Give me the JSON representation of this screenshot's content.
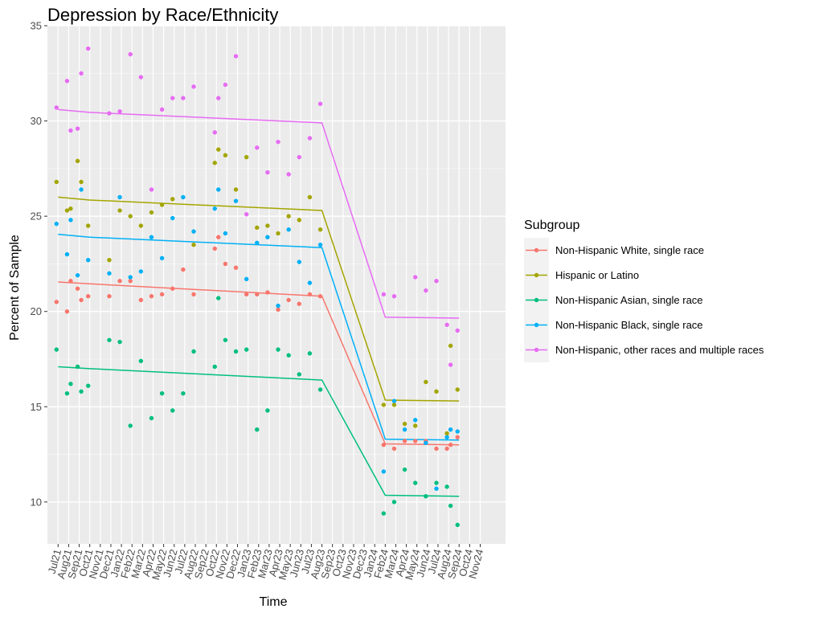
{
  "chart_data": {
    "type": "scatter",
    "title": "Depression by Race/Ethnicity",
    "xlabel": "Time",
    "ylabel": "Percent of Sample",
    "ylim": [
      7.8,
      35
    ],
    "y_ticks": [
      10,
      15,
      20,
      25,
      30,
      35
    ],
    "grid": true,
    "legend_title": "Subgroup",
    "legend_position": "right",
    "x_categories": [
      "Jul21",
      "Aug21",
      "Sep21",
      "Oct21",
      "Nov21",
      "Dec21",
      "Jan22",
      "Feb22",
      "Mar22",
      "Apr22",
      "May22",
      "Jun22",
      "Jul22",
      "Aug22",
      "Sep22",
      "Oct22",
      "Nov22",
      "Dec22",
      "Jan23",
      "Feb23",
      "Mar23",
      "Apr23",
      "May23",
      "Jun23",
      "Jul23",
      "Aug23",
      "Sep23",
      "Oct23",
      "Nov23",
      "Dec23",
      "Jan24",
      "Feb24",
      "Mar24",
      "Apr24",
      "May24",
      "Jun24",
      "Jul24",
      "Aug24",
      "Sep24",
      "Oct24",
      "Nov24"
    ],
    "series": [
      {
        "name": "Non-Hispanic White, single race",
        "color": "#F8766D",
        "points": [
          [
            "Jul21",
            20.5
          ],
          [
            "Aug21",
            20.0
          ],
          [
            "Aug21",
            21.6
          ],
          [
            "Sep21",
            21.2
          ],
          [
            "Sep21",
            20.6
          ],
          [
            "Oct21",
            20.8
          ],
          [
            "Dec21",
            20.8
          ],
          [
            "Jan22",
            21.6
          ],
          [
            "Feb22",
            21.6
          ],
          [
            "Mar22",
            20.6
          ],
          [
            "Apr22",
            20.8
          ],
          [
            "May22",
            20.9
          ],
          [
            "Jun22",
            21.2
          ],
          [
            "Jul22",
            22.2
          ],
          [
            "Aug22",
            20.9
          ],
          [
            "Oct22",
            23.3
          ],
          [
            "Oct22",
            23.9
          ],
          [
            "Nov22",
            22.5
          ],
          [
            "Dec22",
            22.3
          ],
          [
            "Jan23",
            20.9
          ],
          [
            "Feb23",
            20.9
          ],
          [
            "Mar23",
            21.0
          ],
          [
            "Apr23",
            20.1
          ],
          [
            "May23",
            20.6
          ],
          [
            "Jun23",
            20.4
          ],
          [
            "Jul23",
            20.9
          ],
          [
            "Aug23",
            20.8
          ],
          [
            "Feb24",
            13.0
          ],
          [
            "Mar24",
            12.8
          ],
          [
            "Apr24",
            13.2
          ],
          [
            "May24",
            13.2
          ],
          [
            "Jun24",
            13.2
          ],
          [
            "Jul24",
            12.8
          ],
          [
            "Aug24",
            12.8
          ],
          [
            "Aug24",
            13.0
          ],
          [
            "Sep24",
            13.4
          ]
        ],
        "trend": [
          [
            "Jul21",
            21.55
          ],
          [
            "Oct21",
            21.45
          ],
          [
            "Aug23",
            20.8
          ],
          [
            "Feb24",
            13.05
          ],
          [
            "Sep24",
            13.0
          ]
        ]
      },
      {
        "name": "Hispanic or Latino",
        "color": "#A3A500",
        "points": [
          [
            "Jul21",
            26.8
          ],
          [
            "Aug21",
            25.3
          ],
          [
            "Aug21",
            25.4
          ],
          [
            "Sep21",
            27.9
          ],
          [
            "Sep21",
            26.8
          ],
          [
            "Oct21",
            24.5
          ],
          [
            "Dec21",
            22.7
          ],
          [
            "Jan22",
            25.3
          ],
          [
            "Feb22",
            25.0
          ],
          [
            "Mar22",
            24.5
          ],
          [
            "Apr22",
            25.2
          ],
          [
            "May22",
            25.6
          ],
          [
            "Jun22",
            25.9
          ],
          [
            "Aug22",
            23.5
          ],
          [
            "Oct22",
            27.8
          ],
          [
            "Oct22",
            28.5
          ],
          [
            "Nov22",
            28.2
          ],
          [
            "Dec22",
            26.4
          ],
          [
            "Jan23",
            28.1
          ],
          [
            "Feb23",
            24.4
          ],
          [
            "Mar23",
            24.5
          ],
          [
            "Apr23",
            24.1
          ],
          [
            "May23",
            25.0
          ],
          [
            "Jun23",
            24.8
          ],
          [
            "Jul23",
            26.0
          ],
          [
            "Aug23",
            24.3
          ],
          [
            "Feb24",
            15.1
          ],
          [
            "Mar24",
            15.1
          ],
          [
            "Apr24",
            14.1
          ],
          [
            "May24",
            14.0
          ],
          [
            "Jun24",
            16.3
          ],
          [
            "Jul24",
            15.8
          ],
          [
            "Aug24",
            13.6
          ],
          [
            "Aug24",
            18.2
          ],
          [
            "Sep24",
            15.9
          ]
        ],
        "trend": [
          [
            "Jul21",
            26.0
          ],
          [
            "Oct21",
            25.85
          ],
          [
            "Aug23",
            25.3
          ],
          [
            "Feb24",
            15.35
          ],
          [
            "Sep24",
            15.3
          ]
        ]
      },
      {
        "name": "Non-Hispanic Asian, single race",
        "color": "#00BF7D",
        "points": [
          [
            "Jul21",
            18.0
          ],
          [
            "Aug21",
            15.7
          ],
          [
            "Aug21",
            16.2
          ],
          [
            "Sep21",
            17.1
          ],
          [
            "Sep21",
            15.8
          ],
          [
            "Oct21",
            16.1
          ],
          [
            "Dec21",
            18.5
          ],
          [
            "Jan22",
            18.4
          ],
          [
            "Feb22",
            14.0
          ],
          [
            "Mar22",
            17.4
          ],
          [
            "Apr22",
            14.4
          ],
          [
            "May22",
            15.7
          ],
          [
            "Jun22",
            14.8
          ],
          [
            "Jul22",
            15.7
          ],
          [
            "Aug22",
            17.9
          ],
          [
            "Oct22",
            17.1
          ],
          [
            "Oct22",
            20.7
          ],
          [
            "Nov22",
            18.5
          ],
          [
            "Dec22",
            17.9
          ],
          [
            "Jan23",
            18.0
          ],
          [
            "Feb23",
            13.8
          ],
          [
            "Mar23",
            14.8
          ],
          [
            "Apr23",
            18.0
          ],
          [
            "May23",
            17.7
          ],
          [
            "Jun23",
            16.7
          ],
          [
            "Jul23",
            17.8
          ],
          [
            "Aug23",
            15.9
          ],
          [
            "Feb24",
            9.4
          ],
          [
            "Mar24",
            10.0
          ],
          [
            "Apr24",
            11.7
          ],
          [
            "May24",
            11.0
          ],
          [
            "Jun24",
            10.3
          ],
          [
            "Jul24",
            11.0
          ],
          [
            "Aug24",
            10.8
          ],
          [
            "Aug24",
            9.8
          ],
          [
            "Sep24",
            8.8
          ]
        ],
        "trend": [
          [
            "Jul21",
            17.1
          ],
          [
            "Oct21",
            17.0
          ],
          [
            "Aug23",
            16.4
          ],
          [
            "Feb24",
            10.35
          ],
          [
            "Sep24",
            10.3
          ]
        ]
      },
      {
        "name": "Non-Hispanic Black, single race",
        "color": "#00B0F6",
        "points": [
          [
            "Jul21",
            24.6
          ],
          [
            "Aug21",
            23.0
          ],
          [
            "Aug21",
            24.8
          ],
          [
            "Sep21",
            21.9
          ],
          [
            "Sep21",
            26.4
          ],
          [
            "Oct21",
            22.7
          ],
          [
            "Dec21",
            22.0
          ],
          [
            "Jan22",
            26.0
          ],
          [
            "Feb22",
            21.8
          ],
          [
            "Mar22",
            22.1
          ],
          [
            "Apr22",
            23.9
          ],
          [
            "May22",
            22.8
          ],
          [
            "Jun22",
            24.9
          ],
          [
            "Jul22",
            26.0
          ],
          [
            "Aug22",
            24.2
          ],
          [
            "Oct22",
            25.4
          ],
          [
            "Oct22",
            26.4
          ],
          [
            "Nov22",
            24.1
          ],
          [
            "Dec22",
            25.8
          ],
          [
            "Jan23",
            21.7
          ],
          [
            "Feb23",
            23.6
          ],
          [
            "Mar23",
            23.9
          ],
          [
            "Apr23",
            20.3
          ],
          [
            "May23",
            24.3
          ],
          [
            "Jun23",
            22.6
          ],
          [
            "Jul23",
            21.5
          ],
          [
            "Aug23",
            23.5
          ],
          [
            "Feb24",
            11.6
          ],
          [
            "Mar24",
            15.3
          ],
          [
            "Apr24",
            13.8
          ],
          [
            "May24",
            14.3
          ],
          [
            "Jun24",
            13.1
          ],
          [
            "Jul24",
            10.7
          ],
          [
            "Aug24",
            13.4
          ],
          [
            "Aug24",
            13.8
          ],
          [
            "Sep24",
            13.7
          ]
        ],
        "trend": [
          [
            "Jul21",
            24.05
          ],
          [
            "Oct21",
            23.9
          ],
          [
            "Aug23",
            23.35
          ],
          [
            "Feb24",
            13.3
          ],
          [
            "Sep24",
            13.25
          ]
        ]
      },
      {
        "name": "Non-Hispanic, other races and multiple races",
        "color": "#E76BF3",
        "points": [
          [
            "Jul21",
            30.7
          ],
          [
            "Aug21",
            32.1
          ],
          [
            "Aug21",
            29.5
          ],
          [
            "Sep21",
            29.6
          ],
          [
            "Sep21",
            32.5
          ],
          [
            "Oct21",
            33.8
          ],
          [
            "Dec21",
            30.4
          ],
          [
            "Jan22",
            30.5
          ],
          [
            "Feb22",
            33.5
          ],
          [
            "Mar22",
            32.3
          ],
          [
            "Apr22",
            26.4
          ],
          [
            "May22",
            30.6
          ],
          [
            "Jun22",
            31.2
          ],
          [
            "Jul22",
            31.2
          ],
          [
            "Aug22",
            31.8
          ],
          [
            "Oct22",
            29.4
          ],
          [
            "Oct22",
            31.2
          ],
          [
            "Nov22",
            31.9
          ],
          [
            "Dec22",
            33.4
          ],
          [
            "Jan23",
            25.1
          ],
          [
            "Feb23",
            28.6
          ],
          [
            "Mar23",
            27.3
          ],
          [
            "Apr23",
            28.9
          ],
          [
            "May23",
            27.2
          ],
          [
            "Jun23",
            28.1
          ],
          [
            "Jul23",
            29.1
          ],
          [
            "Aug23",
            30.9
          ],
          [
            "Feb24",
            20.9
          ],
          [
            "Mar24",
            20.8
          ],
          [
            "May24",
            21.8
          ],
          [
            "Jun24",
            21.1
          ],
          [
            "Jul24",
            21.6
          ],
          [
            "Aug24",
            19.3
          ],
          [
            "Aug24",
            17.2
          ],
          [
            "Sep24",
            19.0
          ]
        ],
        "trend": [
          [
            "Jul21",
            30.6
          ],
          [
            "Oct21",
            30.45
          ],
          [
            "Aug23",
            29.9
          ],
          [
            "Feb24",
            19.7
          ],
          [
            "Sep24",
            19.65
          ]
        ]
      }
    ]
  }
}
